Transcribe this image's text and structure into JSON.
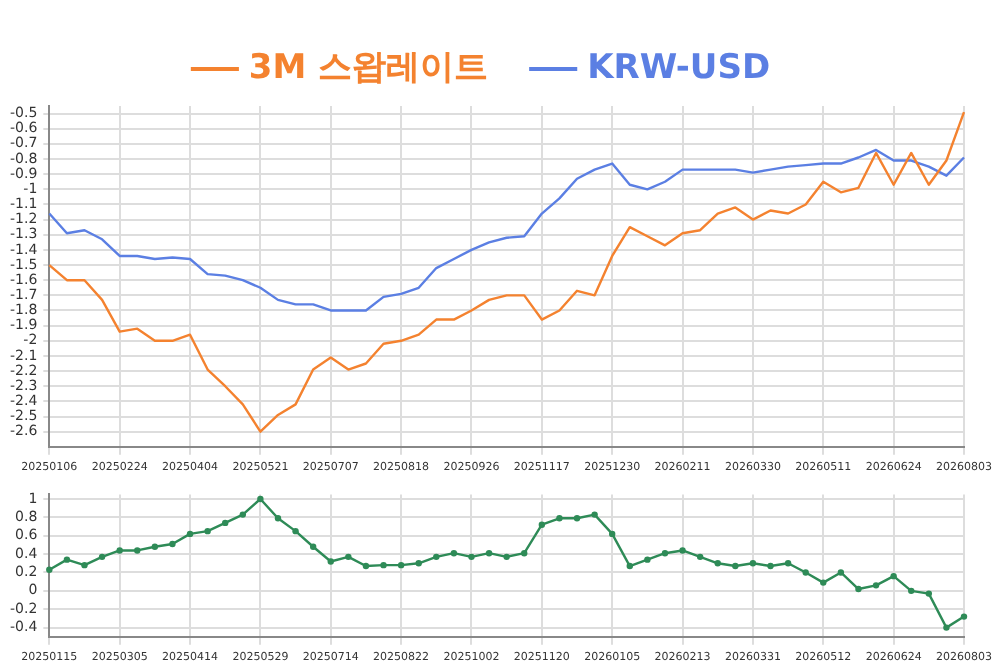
{
  "chart_data": [
    {
      "type": "line",
      "categories": [
        "20250106",
        null,
        null,
        null,
        "20250224",
        null,
        null,
        null,
        "20250404",
        null,
        null,
        null,
        "20250521",
        null,
        null,
        null,
        "20250707",
        null,
        null,
        null,
        "20250818",
        null,
        null,
        null,
        "20250926",
        null,
        null,
        null,
        "20251117",
        null,
        null,
        null,
        "20251230",
        null,
        null,
        null,
        "20260211",
        null,
        null,
        null,
        "20260330",
        null,
        null,
        null,
        "20260511",
        null,
        null,
        null,
        "20260624",
        null,
        null,
        null,
        "20260803"
      ],
      "series": [
        {
          "name": "3M 스왑레이트",
          "color": "#f4822f",
          "values": [
            -1.5,
            -1.6,
            -1.6,
            -1.73,
            -1.94,
            -1.92,
            -2.0,
            -2.0,
            -1.96,
            -2.19,
            -2.3,
            -2.42,
            -2.6,
            -2.49,
            -2.42,
            -2.19,
            -2.11,
            -2.19,
            -2.15,
            -2.02,
            -2.0,
            -1.96,
            -1.86,
            -1.86,
            -1.8,
            -1.73,
            -1.7,
            -1.7,
            -1.86,
            -1.8,
            -1.67,
            -1.7,
            -1.44,
            -1.25,
            -1.31,
            -1.37,
            -1.29,
            -1.27,
            -1.16,
            -1.12,
            -1.2,
            -1.14,
            -1.16,
            -1.1,
            -0.95,
            -1.02,
            -0.99,
            -0.76,
            -0.97,
            -0.76,
            -0.97,
            -0.81,
            -0.49
          ]
        },
        {
          "name": "KRW-USD",
          "color": "#5b7fe3",
          "values": [
            -1.16,
            -1.29,
            -1.27,
            -1.33,
            -1.44,
            -1.44,
            -1.46,
            -1.45,
            -1.46,
            -1.56,
            -1.57,
            -1.6,
            -1.65,
            -1.73,
            -1.76,
            -1.76,
            -1.8,
            -1.8,
            -1.8,
            -1.71,
            -1.69,
            -1.65,
            -1.52,
            -1.46,
            -1.4,
            -1.35,
            -1.32,
            -1.31,
            -1.16,
            -1.06,
            -0.93,
            -0.87,
            -0.83,
            -0.97,
            -1.0,
            -0.95,
            -0.87,
            -0.87,
            -0.87,
            -0.87,
            -0.89,
            -0.87,
            -0.85,
            -0.84,
            -0.83,
            -0.83,
            -0.79,
            -0.74,
            -0.81,
            -0.81,
            -0.85,
            -0.91,
            -0.79
          ]
        }
      ],
      "ylim": [
        -2.7,
        -0.45
      ],
      "yticks": [
        -2.6,
        -2.5,
        -2.4,
        -2.3,
        -2.2,
        -2.1,
        -2,
        -1.9,
        -1.8,
        -1.7,
        -1.6,
        -1.5,
        -1.4,
        -1.3,
        -1.2,
        -1.1,
        -1,
        -0.9,
        -0.8,
        -0.7,
        -0.6,
        -0.5
      ],
      "grid": true,
      "legend": "top",
      "marker": "none"
    },
    {
      "type": "line",
      "categories": [
        "20250115",
        null,
        null,
        null,
        "20250305",
        null,
        null,
        null,
        "20250414",
        null,
        null,
        null,
        "20250529",
        null,
        null,
        null,
        "20250714",
        null,
        null,
        null,
        "20250822",
        null,
        null,
        null,
        "20251002",
        null,
        null,
        null,
        "20251120",
        null,
        null,
        null,
        "20260105",
        null,
        null,
        null,
        "20260213",
        null,
        null,
        null,
        "20260331",
        null,
        null,
        null,
        "20260512",
        null,
        null,
        null,
        "20260624",
        null,
        null,
        null,
        "20260803"
      ],
      "series": [
        {
          "color": "#2e8b57",
          "values": [
            0.23,
            0.34,
            0.28,
            0.37,
            0.44,
            0.44,
            0.48,
            0.51,
            0.62,
            0.65,
            0.74,
            0.83,
            1.0,
            0.79,
            0.65,
            0.48,
            0.32,
            0.37,
            0.27,
            0.28,
            0.28,
            0.3,
            0.37,
            0.41,
            0.37,
            0.41,
            0.37,
            0.41,
            0.72,
            0.79,
            0.79,
            0.83,
            0.62,
            0.27,
            0.34,
            0.41,
            0.44,
            0.37,
            0.3,
            0.27,
            0.3,
            0.27,
            0.3,
            0.2,
            0.09,
            0.2,
            0.02,
            0.06,
            0.16,
            0.0,
            -0.03,
            -0.4,
            -0.28
          ]
        }
      ],
      "ylim": [
        -0.5,
        1.05
      ],
      "yticks": [
        -0.4,
        -0.2,
        0,
        0.2,
        0.4,
        0.6,
        0.8,
        1
      ],
      "grid": true,
      "legend": false,
      "marker": "circle"
    }
  ]
}
